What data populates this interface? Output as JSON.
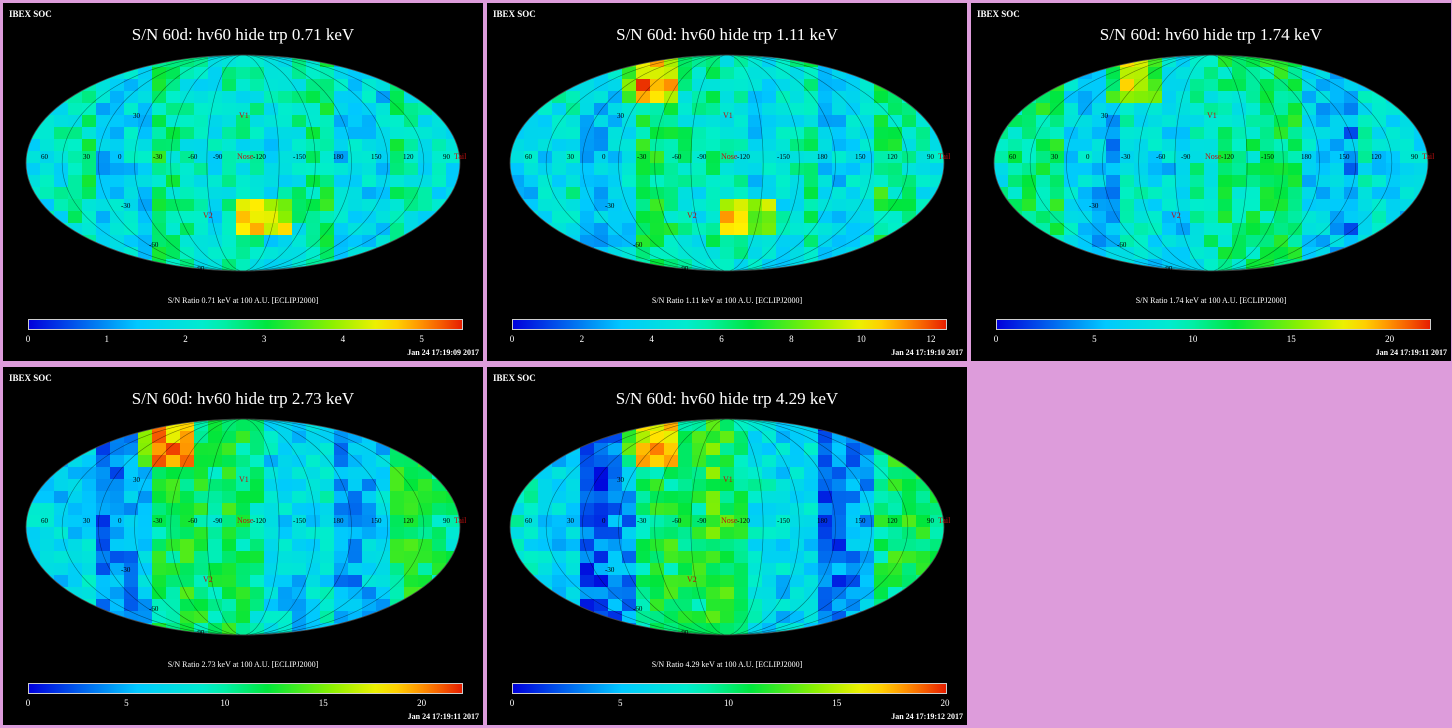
{
  "brand": "IBEX SOC",
  "panels": [
    {
      "title": "S/N  60d: hv60 hide trp 0.71 keV",
      "caption": "S/N Ratio 0.71 keV at 100 A.U. [ECLIPJ2000]",
      "timestamp": "Jan 24 17:19:09 2017",
      "ticks": [
        "0",
        "1",
        "2",
        "3",
        "4",
        "5"
      ],
      "tick_values": [
        0,
        1,
        2,
        3,
        4,
        5
      ],
      "scale_max": 5.5,
      "seed": 11,
      "hotspot": "south"
    },
    {
      "title": "S/N  60d: hv60 hide trp 1.11 keV",
      "caption": "S/N Ratio 1.11 keV at 100 A.U. [ECLIPJ2000]",
      "timestamp": "Jan 24 17:19:10 2017",
      "ticks": [
        "0",
        "2",
        "4",
        "6",
        "8",
        "10",
        "12"
      ],
      "tick_values": [
        0,
        2,
        4,
        6,
        8,
        10,
        12
      ],
      "scale_max": 12.4,
      "seed": 23,
      "hotspot": "both"
    },
    {
      "title": "S/N  60d: hv60 hide trp 1.74 keV",
      "caption": "S/N Ratio 1.74 keV at 100 A.U. [ECLIPJ2000]",
      "timestamp": "Jan 24 17:19:11 2017",
      "ticks": [
        "0",
        "5",
        "10",
        "15",
        "20"
      ],
      "tick_values": [
        0,
        5,
        10,
        15,
        20
      ],
      "scale_max": 22,
      "seed": 37,
      "hotspot": "north"
    },
    {
      "title": "S/N  60d: hv60 hide trp 2.73 keV",
      "caption": "S/N Ratio 2.73 keV at 100 A.U. [ECLIPJ2000]",
      "timestamp": "Jan 24 17:19:11 2017",
      "ticks": [
        "0",
        "5",
        "10",
        "15",
        "20"
      ],
      "tick_values": [
        0,
        5,
        10,
        15,
        20
      ],
      "scale_max": 22,
      "seed": 41,
      "hotspot": "north"
    },
    {
      "title": "S/N  60d: hv60 hide trp 4.29 keV",
      "caption": "S/N Ratio 4.29 keV at 100 A.U. [ECLIPJ2000]",
      "timestamp": "Jan 24 17:19:12 2017",
      "ticks": [
        "0",
        "5",
        "10",
        "15",
        "20"
      ],
      "tick_values": [
        0,
        5,
        10,
        15,
        20
      ],
      "scale_max": 20,
      "seed": 53,
      "hotspot": "north"
    }
  ],
  "map_labels": {
    "v1": "V1",
    "v2": "V2",
    "nose": "Nose",
    "tail": "Tail",
    "lat_ticks": [
      "30",
      "-30",
      "-60",
      "-90"
    ],
    "lon_ticks": [
      "60",
      "30",
      "0",
      "-30",
      "-60",
      "-90",
      "-120",
      "-150",
      "180",
      "150",
      "120",
      "90"
    ]
  },
  "colors": {
    "background": "#dd9cdb",
    "panel": "#000000"
  }
}
